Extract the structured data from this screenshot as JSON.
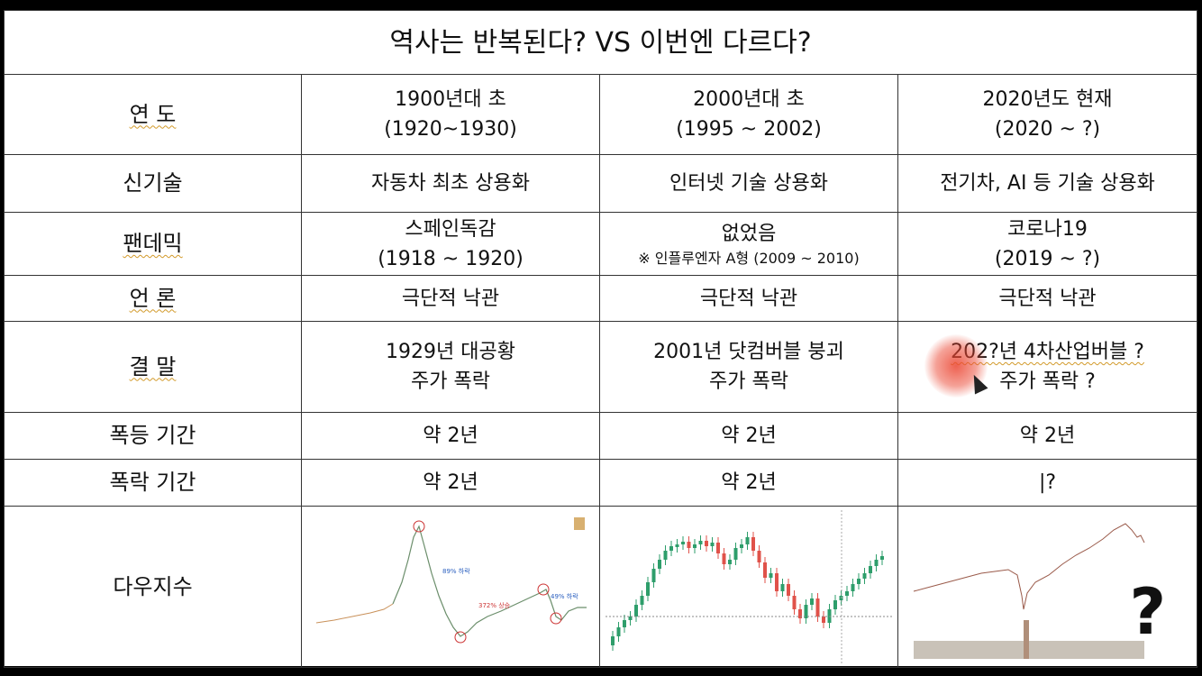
{
  "title": "역사는 반복된다? VS 이번엔 다르다?",
  "rows": [
    {
      "label": "연    도",
      "cols": [
        [
          "1900년대 초",
          "(1920~1930)"
        ],
        [
          "2000년대 초",
          "(1995 ~ 2002)"
        ],
        [
          "2020년도 현재",
          "(2020 ~ ?)"
        ]
      ]
    },
    {
      "label": "신기술",
      "cols": [
        [
          "자동차 최초 상용화"
        ],
        [
          "인터넷 기술 상용화"
        ],
        [
          "전기차, AI 등 기술 상용화"
        ]
      ]
    },
    {
      "label": "팬데믹",
      "cols": [
        [
          "스페인독감",
          "(1918 ~ 1920)"
        ],
        [
          "없었음",
          "※ 인플루엔자 A형 (2009 ~ 2010)"
        ],
        [
          "코로나19",
          "(2019 ~ ?)"
        ]
      ]
    },
    {
      "label": "언  론",
      "cols": [
        [
          "극단적 낙관"
        ],
        [
          "극단적 낙관"
        ],
        [
          "극단적 낙관"
        ]
      ]
    },
    {
      "label": "결  말",
      "cols": [
        [
          "1929년 대공황",
          "주가 폭락"
        ],
        [
          "2001년 닷컴버블 붕괴",
          "주가 폭락"
        ],
        [
          "202?년 4차산업버블 ?",
          "주가 폭락 ?"
        ]
      ]
    },
    {
      "label": "폭등 기간",
      "cols": [
        [
          "약 2년"
        ],
        [
          "약 2년"
        ],
        [
          "약 2년"
        ]
      ]
    },
    {
      "label": "폭락 기간",
      "cols": [
        [
          "약 2년"
        ],
        [
          "약 2년"
        ],
        [
          "|?"
        ]
      ]
    },
    {
      "label": "다우지수",
      "cols": [
        [],
        [],
        []
      ]
    }
  ],
  "chart1_notes": {
    "a": "89% 하락",
    "b": "372% 상승",
    "c": "49% 하락"
  },
  "chart3_mark": "?"
}
